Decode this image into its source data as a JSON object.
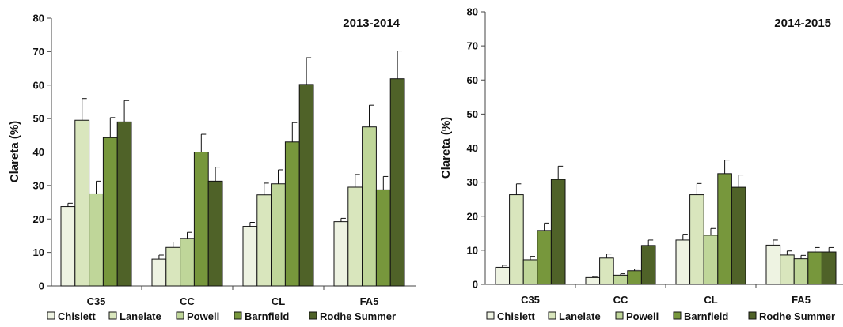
{
  "chart_data": [
    {
      "type": "bar",
      "title": "2013-2014",
      "ylabel": "Clareta (%)",
      "xlabel": "",
      "ylim": [
        0,
        80
      ],
      "yticks": [
        0,
        10,
        20,
        30,
        40,
        50,
        60,
        70,
        80
      ],
      "categories": [
        "C35",
        "CC",
        "CL",
        "FA5"
      ],
      "legend_position": "bottom",
      "series": [
        {
          "name": "Chislett",
          "color": "#eef3e2",
          "values": [
            23.7,
            8.0,
            17.8,
            19.2
          ],
          "errors": [
            1.0,
            1.2,
            1.2,
            1.0
          ]
        },
        {
          "name": "Lanelate",
          "color": "#d9e6bd",
          "values": [
            49.5,
            11.5,
            27.2,
            29.5
          ],
          "errors": [
            6.5,
            1.6,
            3.5,
            3.8
          ]
        },
        {
          "name": "Powell",
          "color": "#bfd699",
          "values": [
            27.5,
            14.2,
            30.5,
            47.5
          ],
          "errors": [
            3.8,
            1.8,
            4.2,
            6.5
          ]
        },
        {
          "name": "Barnfield",
          "color": "#77973c",
          "values": [
            44.3,
            40.0,
            43.0,
            28.7
          ],
          "errors": [
            6.0,
            5.3,
            5.8,
            4.0
          ]
        },
        {
          "name": "Rodhe Summer",
          "color": "#4f6228",
          "values": [
            49.0,
            31.3,
            60.2,
            61.9
          ],
          "errors": [
            6.4,
            4.2,
            8.0,
            8.3
          ]
        }
      ]
    },
    {
      "type": "bar",
      "title": "2014-2015",
      "ylabel": "Clareta (%)",
      "xlabel": "",
      "ylim": [
        0,
        80
      ],
      "yticks": [
        0,
        10,
        20,
        30,
        40,
        50,
        60,
        70,
        80
      ],
      "categories": [
        "C35",
        "CC",
        "CL",
        "FA5"
      ],
      "legend_position": "bottom",
      "series": [
        {
          "name": "Chislett",
          "color": "#eef3e2",
          "values": [
            5.0,
            2.0,
            13.0,
            11.5
          ],
          "errors": [
            0.6,
            0.3,
            1.7,
            1.5
          ]
        },
        {
          "name": "Lanelate",
          "color": "#d9e6bd",
          "values": [
            26.3,
            7.7,
            26.3,
            8.6
          ],
          "errors": [
            3.2,
            1.2,
            3.3,
            1.2
          ]
        },
        {
          "name": "Powell",
          "color": "#bfd699",
          "values": [
            7.2,
            2.7,
            14.4,
            7.5
          ],
          "errors": [
            1.0,
            0.4,
            2.0,
            1.0
          ]
        },
        {
          "name": "Barnfield",
          "color": "#77973c",
          "values": [
            15.8,
            4.0,
            32.5,
            9.5
          ],
          "errors": [
            2.2,
            0.5,
            4.0,
            1.3
          ]
        },
        {
          "name": "Rodhe Summer",
          "color": "#4f6228",
          "values": [
            30.8,
            11.4,
            28.5,
            9.5
          ],
          "errors": [
            3.9,
            1.6,
            3.6,
            1.3
          ]
        }
      ]
    }
  ]
}
